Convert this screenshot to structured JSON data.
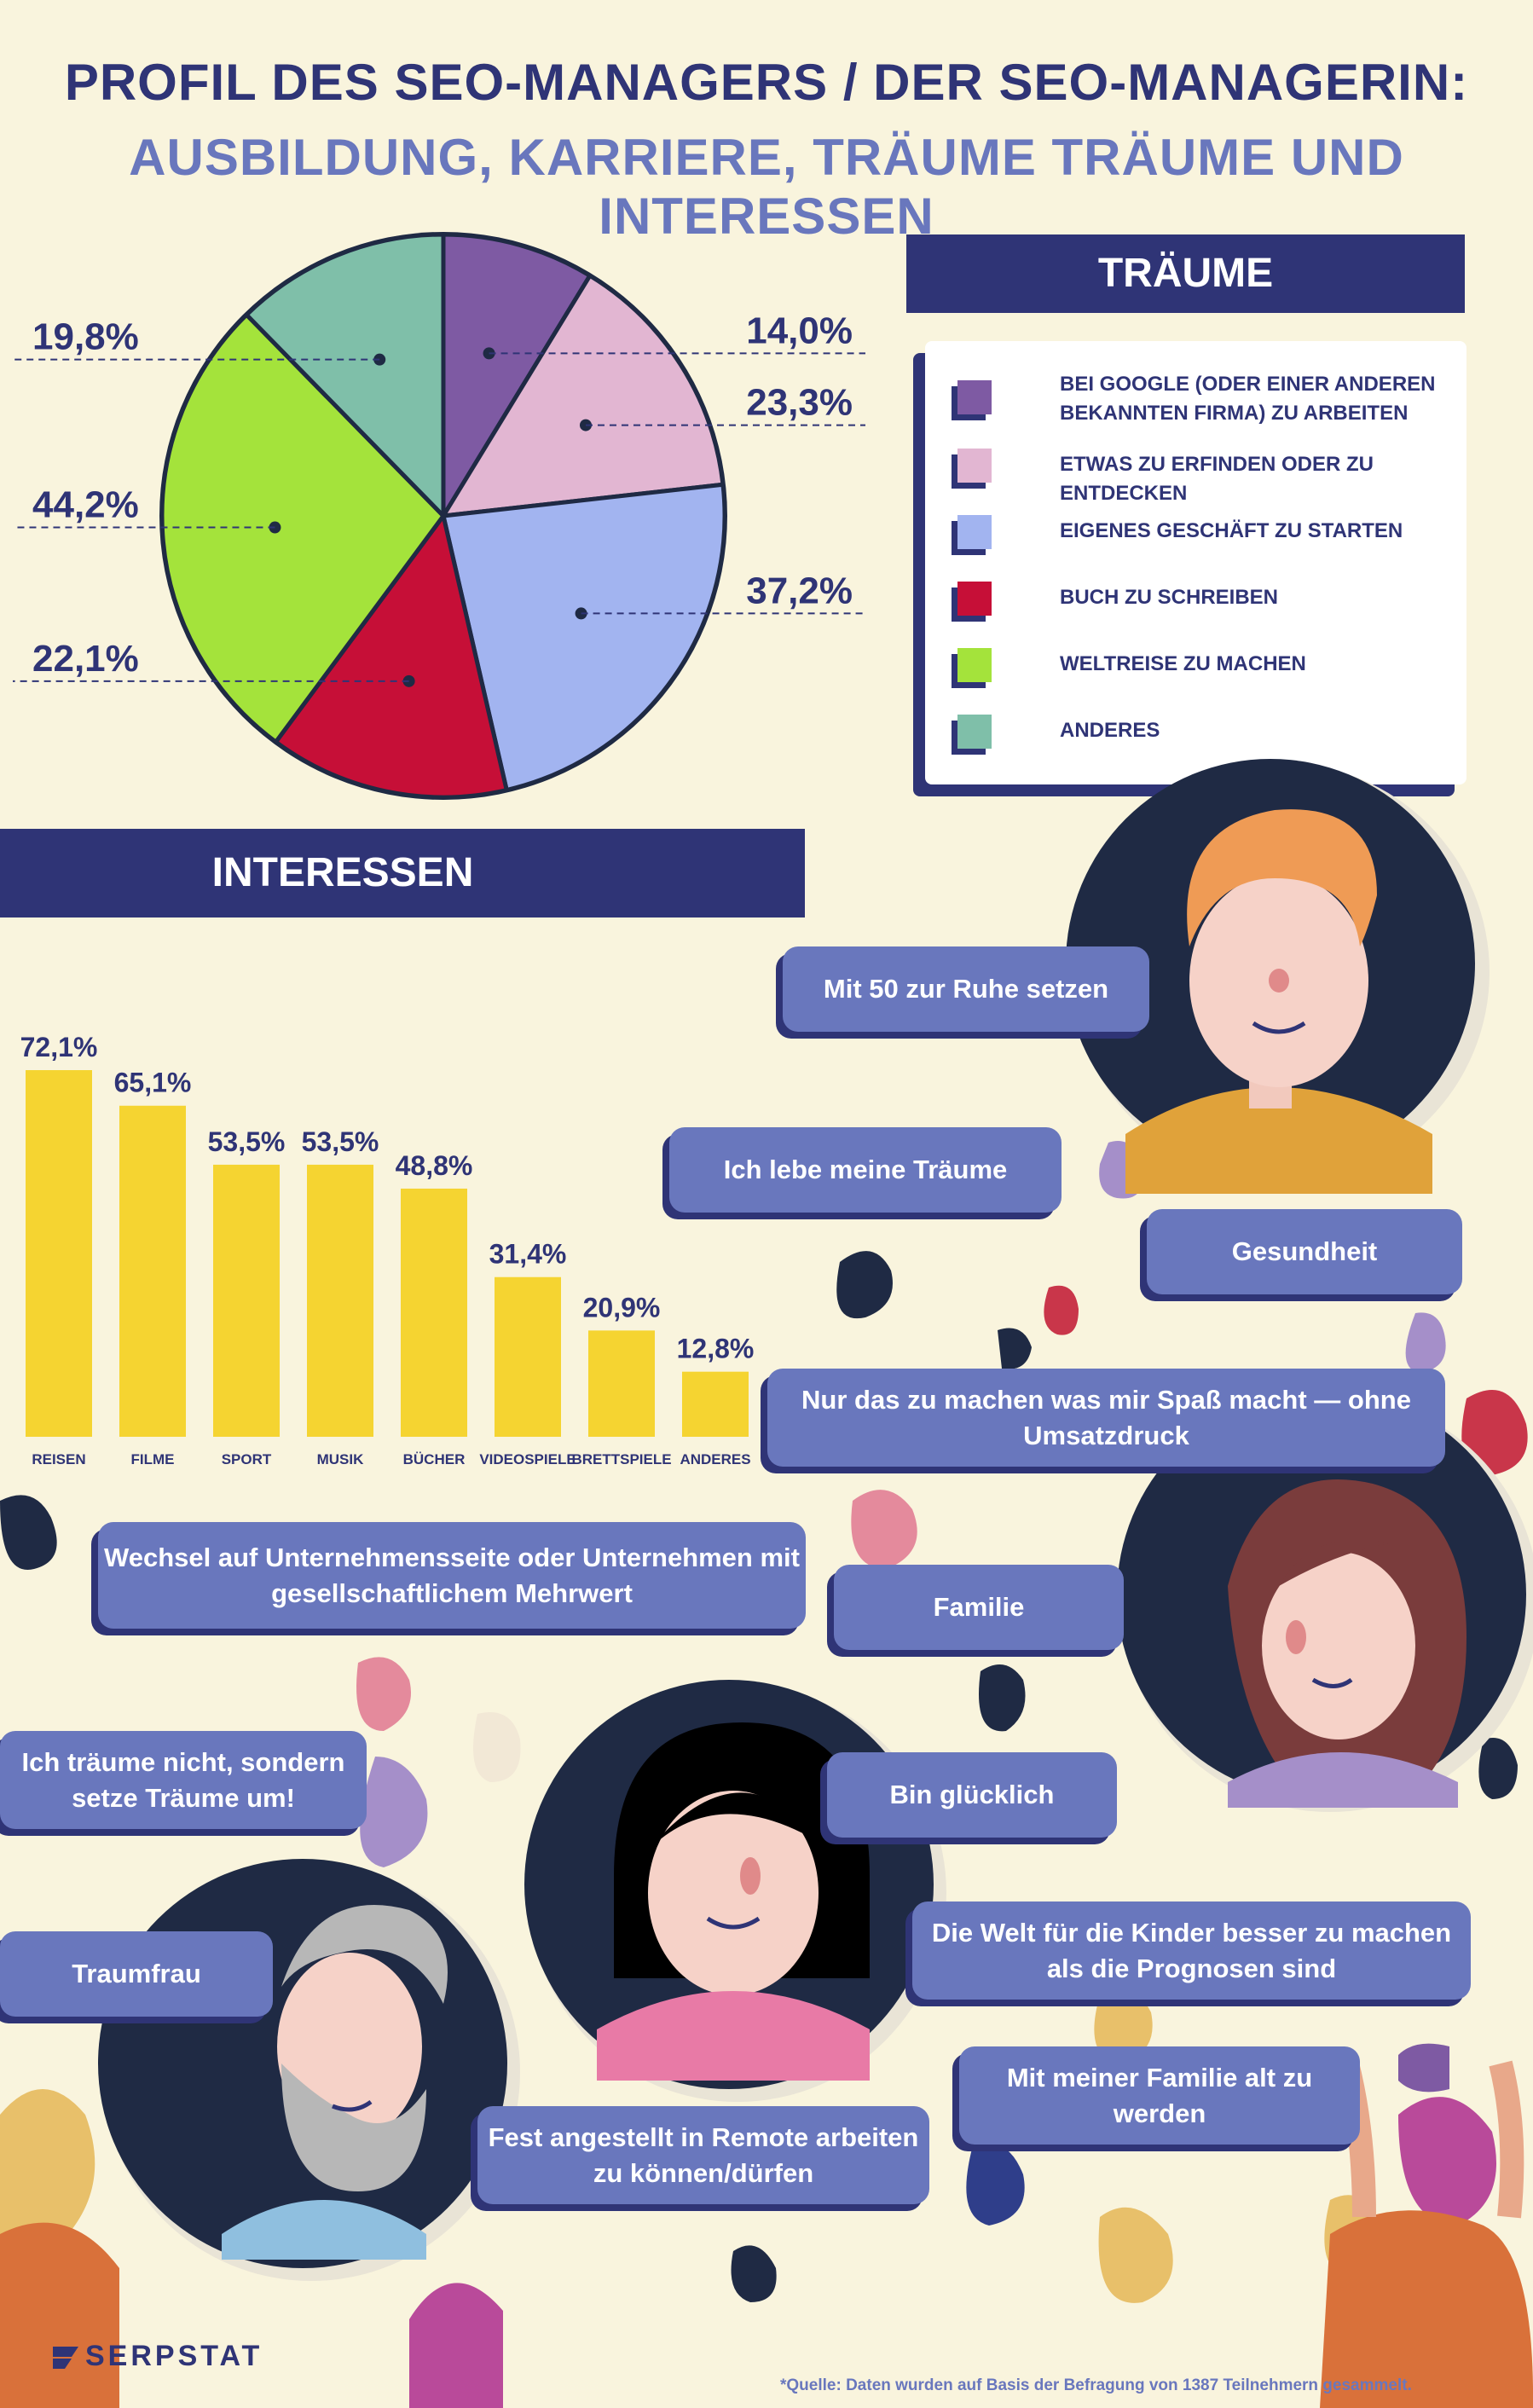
{
  "title_line1": "PROFIL DES SEO-MANAGERS / DER SEO-MANAGERIN:",
  "title_line2": "AUSBILDUNG, KARRIERE, TRÄUME TRÄUME UND INTERESSEN",
  "traeume_heading": "TRÄUME",
  "interessen_heading": "INTERESSEN",
  "chart_data": [
    {
      "type": "pie",
      "slices": [
        {
          "label": "BEI GOOGLE (ODER EINER ANDEREN BEKANNTEN FIRMA) ZU ARBEITEN",
          "value": 14.0,
          "display": "14,0%",
          "color": "#7e5aa3"
        },
        {
          "label": "ETWAS ZU ERFINDEN ODER ZU ENTDECKEN",
          "value": 23.3,
          "display": "23,3%",
          "color": "#e2b6d2"
        },
        {
          "label": "EIGENES GESCHÄFT ZU STARTEN",
          "value": 37.2,
          "display": "37,2%",
          "color": "#a2b4f0"
        },
        {
          "label": "BUCH ZU SCHREIBEN",
          "value": 22.1,
          "display": "22,1%",
          "color": "#c60f37"
        },
        {
          "label": "WELTREISE ZU MACHEN",
          "value": 44.2,
          "display": "44,2%",
          "color": "#a4e33b"
        },
        {
          "label": "ANDERES",
          "value": 19.8,
          "display": "19,8%",
          "color": "#7fbfa9"
        }
      ]
    },
    {
      "type": "bar",
      "categories": [
        "REISEN",
        "FILME",
        "SPORT",
        "MUSIK",
        "BÜCHER",
        "VIDEOSPIELE",
        "BRETTSPIELE",
        "ANDERES"
      ],
      "values": [
        72.1,
        65.1,
        53.5,
        53.5,
        48.8,
        31.4,
        20.9,
        12.8
      ],
      "labels": [
        "72,1%",
        "65,1%",
        "53,5%",
        "53,5%",
        "48,8%",
        "31,4%",
        "20,9%",
        "12,8%"
      ],
      "color": "#f5d431"
    }
  ],
  "quotes": [
    "Mit 50 zur Ruhe setzen",
    "Ich lebe meine Träume",
    "Gesundheit",
    "Nur das zu machen was mir Spaß macht — ohne Umsatzdruck",
    "Wechsel auf Unternehmensseite oder Unternehmen mit gesellschaftlichem Mehrwert",
    "Familie",
    "Ich träume nicht, sondern setze Träume um!",
    "Bin glücklich",
    "Die Welt für die Kinder besser zu machen als die Prognosen sind",
    "Traumfrau",
    "Mit meiner Familie alt zu werden",
    "Fest angestellt in Remote arbeiten zu können/dürfen"
  ],
  "brand": "SERPSTAT",
  "source": "*Quelle: Daten wurden auf Basis der Befragung von 1387 Teilnehmern gesammelt."
}
